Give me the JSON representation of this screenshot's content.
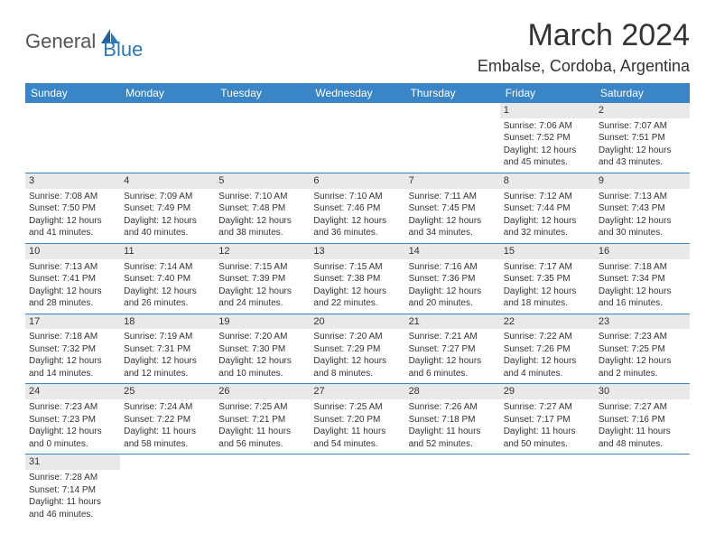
{
  "brand": {
    "general": "General",
    "blue": "Blue"
  },
  "title": {
    "month": "March 2024",
    "location": "Embalse, Cordoba, Argentina"
  },
  "colors": {
    "header_bg": "#3a85c6",
    "daynum_bg": "#e9e9e9",
    "border": "#3a85c6"
  },
  "weekdays": [
    "Sunday",
    "Monday",
    "Tuesday",
    "Wednesday",
    "Thursday",
    "Friday",
    "Saturday"
  ],
  "weeks": [
    [
      null,
      null,
      null,
      null,
      null,
      {
        "n": "1",
        "sr": "Sunrise: 7:06 AM",
        "ss": "Sunset: 7:52 PM",
        "d1": "Daylight: 12 hours",
        "d2": "and 45 minutes."
      },
      {
        "n": "2",
        "sr": "Sunrise: 7:07 AM",
        "ss": "Sunset: 7:51 PM",
        "d1": "Daylight: 12 hours",
        "d2": "and 43 minutes."
      }
    ],
    [
      {
        "n": "3",
        "sr": "Sunrise: 7:08 AM",
        "ss": "Sunset: 7:50 PM",
        "d1": "Daylight: 12 hours",
        "d2": "and 41 minutes."
      },
      {
        "n": "4",
        "sr": "Sunrise: 7:09 AM",
        "ss": "Sunset: 7:49 PM",
        "d1": "Daylight: 12 hours",
        "d2": "and 40 minutes."
      },
      {
        "n": "5",
        "sr": "Sunrise: 7:10 AM",
        "ss": "Sunset: 7:48 PM",
        "d1": "Daylight: 12 hours",
        "d2": "and 38 minutes."
      },
      {
        "n": "6",
        "sr": "Sunrise: 7:10 AM",
        "ss": "Sunset: 7:46 PM",
        "d1": "Daylight: 12 hours",
        "d2": "and 36 minutes."
      },
      {
        "n": "7",
        "sr": "Sunrise: 7:11 AM",
        "ss": "Sunset: 7:45 PM",
        "d1": "Daylight: 12 hours",
        "d2": "and 34 minutes."
      },
      {
        "n": "8",
        "sr": "Sunrise: 7:12 AM",
        "ss": "Sunset: 7:44 PM",
        "d1": "Daylight: 12 hours",
        "d2": "and 32 minutes."
      },
      {
        "n": "9",
        "sr": "Sunrise: 7:13 AM",
        "ss": "Sunset: 7:43 PM",
        "d1": "Daylight: 12 hours",
        "d2": "and 30 minutes."
      }
    ],
    [
      {
        "n": "10",
        "sr": "Sunrise: 7:13 AM",
        "ss": "Sunset: 7:41 PM",
        "d1": "Daylight: 12 hours",
        "d2": "and 28 minutes."
      },
      {
        "n": "11",
        "sr": "Sunrise: 7:14 AM",
        "ss": "Sunset: 7:40 PM",
        "d1": "Daylight: 12 hours",
        "d2": "and 26 minutes."
      },
      {
        "n": "12",
        "sr": "Sunrise: 7:15 AM",
        "ss": "Sunset: 7:39 PM",
        "d1": "Daylight: 12 hours",
        "d2": "and 24 minutes."
      },
      {
        "n": "13",
        "sr": "Sunrise: 7:15 AM",
        "ss": "Sunset: 7:38 PM",
        "d1": "Daylight: 12 hours",
        "d2": "and 22 minutes."
      },
      {
        "n": "14",
        "sr": "Sunrise: 7:16 AM",
        "ss": "Sunset: 7:36 PM",
        "d1": "Daylight: 12 hours",
        "d2": "and 20 minutes."
      },
      {
        "n": "15",
        "sr": "Sunrise: 7:17 AM",
        "ss": "Sunset: 7:35 PM",
        "d1": "Daylight: 12 hours",
        "d2": "and 18 minutes."
      },
      {
        "n": "16",
        "sr": "Sunrise: 7:18 AM",
        "ss": "Sunset: 7:34 PM",
        "d1": "Daylight: 12 hours",
        "d2": "and 16 minutes."
      }
    ],
    [
      {
        "n": "17",
        "sr": "Sunrise: 7:18 AM",
        "ss": "Sunset: 7:32 PM",
        "d1": "Daylight: 12 hours",
        "d2": "and 14 minutes."
      },
      {
        "n": "18",
        "sr": "Sunrise: 7:19 AM",
        "ss": "Sunset: 7:31 PM",
        "d1": "Daylight: 12 hours",
        "d2": "and 12 minutes."
      },
      {
        "n": "19",
        "sr": "Sunrise: 7:20 AM",
        "ss": "Sunset: 7:30 PM",
        "d1": "Daylight: 12 hours",
        "d2": "and 10 minutes."
      },
      {
        "n": "20",
        "sr": "Sunrise: 7:20 AM",
        "ss": "Sunset: 7:29 PM",
        "d1": "Daylight: 12 hours",
        "d2": "and 8 minutes."
      },
      {
        "n": "21",
        "sr": "Sunrise: 7:21 AM",
        "ss": "Sunset: 7:27 PM",
        "d1": "Daylight: 12 hours",
        "d2": "and 6 minutes."
      },
      {
        "n": "22",
        "sr": "Sunrise: 7:22 AM",
        "ss": "Sunset: 7:26 PM",
        "d1": "Daylight: 12 hours",
        "d2": "and 4 minutes."
      },
      {
        "n": "23",
        "sr": "Sunrise: 7:23 AM",
        "ss": "Sunset: 7:25 PM",
        "d1": "Daylight: 12 hours",
        "d2": "and 2 minutes."
      }
    ],
    [
      {
        "n": "24",
        "sr": "Sunrise: 7:23 AM",
        "ss": "Sunset: 7:23 PM",
        "d1": "Daylight: 12 hours",
        "d2": "and 0 minutes."
      },
      {
        "n": "25",
        "sr": "Sunrise: 7:24 AM",
        "ss": "Sunset: 7:22 PM",
        "d1": "Daylight: 11 hours",
        "d2": "and 58 minutes."
      },
      {
        "n": "26",
        "sr": "Sunrise: 7:25 AM",
        "ss": "Sunset: 7:21 PM",
        "d1": "Daylight: 11 hours",
        "d2": "and 56 minutes."
      },
      {
        "n": "27",
        "sr": "Sunrise: 7:25 AM",
        "ss": "Sunset: 7:20 PM",
        "d1": "Daylight: 11 hours",
        "d2": "and 54 minutes."
      },
      {
        "n": "28",
        "sr": "Sunrise: 7:26 AM",
        "ss": "Sunset: 7:18 PM",
        "d1": "Daylight: 11 hours",
        "d2": "and 52 minutes."
      },
      {
        "n": "29",
        "sr": "Sunrise: 7:27 AM",
        "ss": "Sunset: 7:17 PM",
        "d1": "Daylight: 11 hours",
        "d2": "and 50 minutes."
      },
      {
        "n": "30",
        "sr": "Sunrise: 7:27 AM",
        "ss": "Sunset: 7:16 PM",
        "d1": "Daylight: 11 hours",
        "d2": "and 48 minutes."
      }
    ],
    [
      {
        "n": "31",
        "sr": "Sunrise: 7:28 AM",
        "ss": "Sunset: 7:14 PM",
        "d1": "Daylight: 11 hours",
        "d2": "and 46 minutes."
      },
      null,
      null,
      null,
      null,
      null,
      null
    ]
  ]
}
